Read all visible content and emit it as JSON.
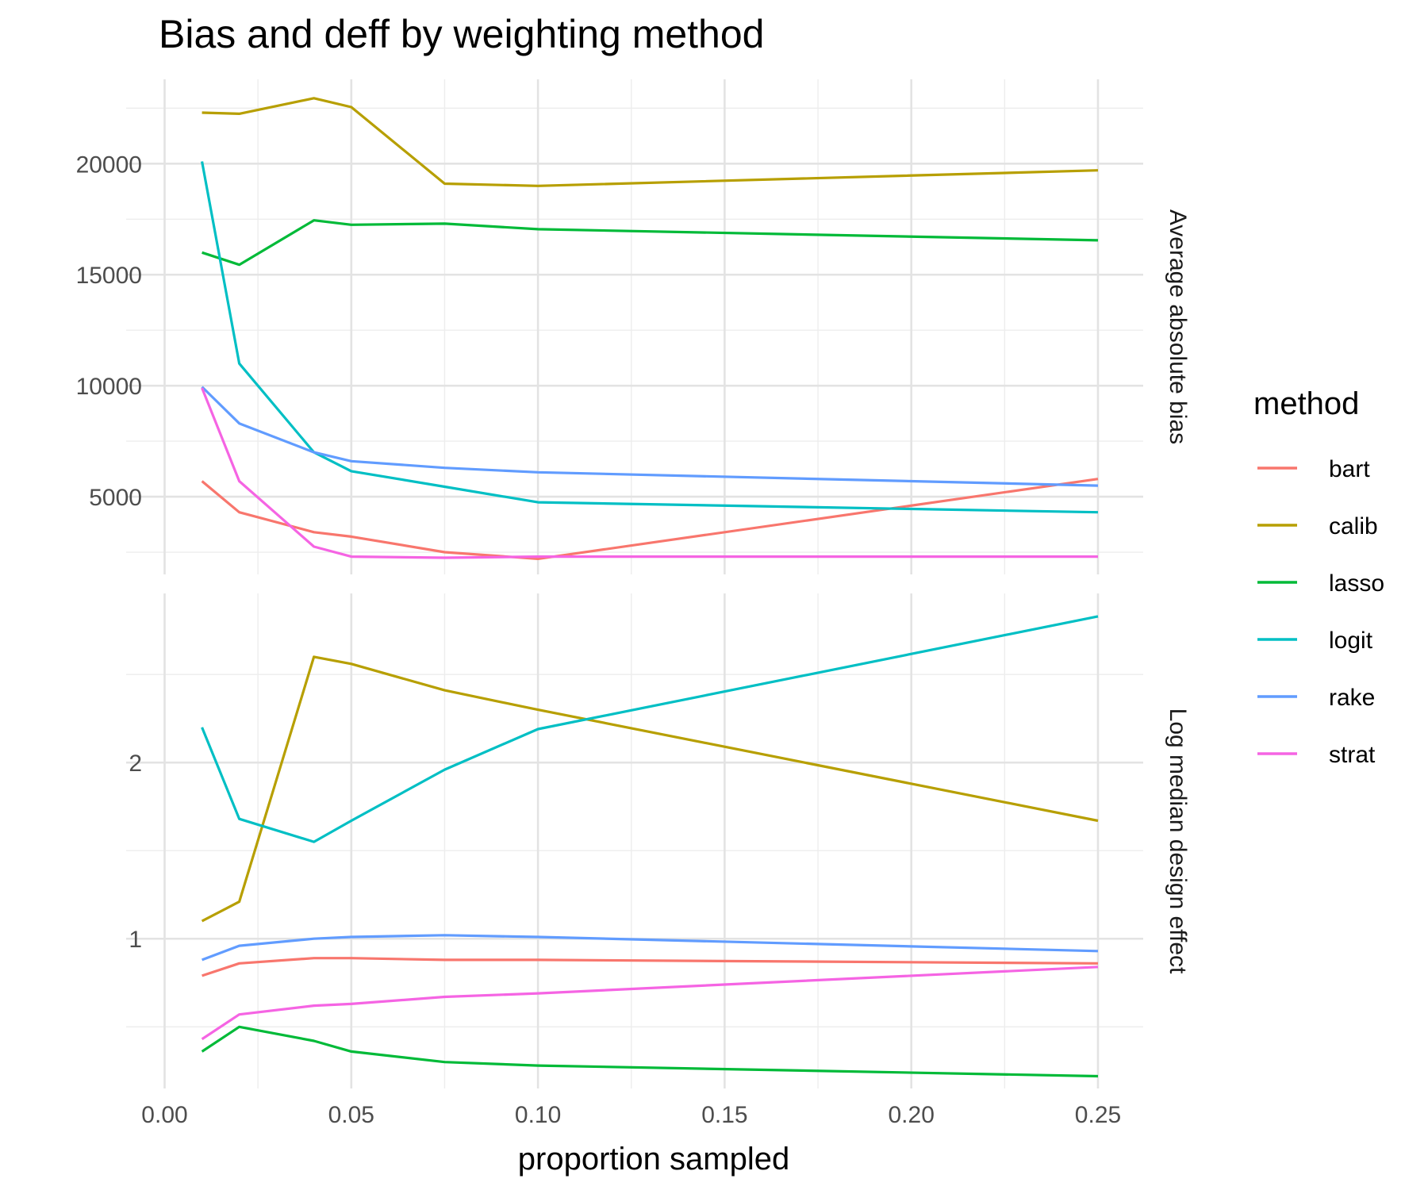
{
  "chart_data": {
    "type": "line",
    "title": "Bias and deff by weighting method",
    "xlabel": "proportion sampled",
    "x_ticks": [
      "0.00",
      "0.05",
      "0.10",
      "0.15",
      "0.20",
      "0.25"
    ],
    "xlim": [
      0,
      0.25
    ],
    "x": [
      0.01,
      0.02,
      0.04,
      0.05,
      0.075,
      0.1,
      0.25
    ],
    "legend": {
      "title": "method",
      "position": "right",
      "entries": [
        {
          "label": "bart",
          "color": "#F8766D"
        },
        {
          "label": "calib",
          "color": "#B79F00"
        },
        {
          "label": "lasso",
          "color": "#00BA38"
        },
        {
          "label": "logit",
          "color": "#00BFC4"
        },
        {
          "label": "rake",
          "color": "#619CFF"
        },
        {
          "label": "strat",
          "color": "#F564E3"
        }
      ]
    },
    "grid": true,
    "panels": [
      {
        "strip_label": "Average absolute bias",
        "ylim": [
          1500,
          23800
        ],
        "y_ticks": [
          "5000",
          "10000",
          "15000",
          "20000"
        ],
        "y_tick_values": [
          5000,
          10000,
          15000,
          20000
        ],
        "series": [
          {
            "name": "bart",
            "color": "#F8766D",
            "values": [
              5700,
              4300,
              3400,
              3200,
              2500,
              2200,
              5800
            ]
          },
          {
            "name": "calib",
            "color": "#B79F00",
            "values": [
              22300,
              22250,
              22950,
              22550,
              19100,
              19000,
              19700
            ]
          },
          {
            "name": "lasso",
            "color": "#00BA38",
            "values": [
              16000,
              15450,
              17450,
              17250,
              17300,
              17050,
              16550
            ]
          },
          {
            "name": "logit",
            "color": "#00BFC4",
            "values": [
              20100,
              11000,
              7000,
              6150,
              5450,
              4750,
              4300
            ]
          },
          {
            "name": "rake",
            "color": "#619CFF",
            "values": [
              9950,
              8300,
              7000,
              6600,
              6300,
              6100,
              5500
            ]
          },
          {
            "name": "strat",
            "color": "#F564E3",
            "values": [
              9900,
              5700,
              2750,
              2300,
              2250,
              2300,
              2300
            ]
          }
        ]
      },
      {
        "strip_label": "Log median design effect",
        "ylim": [
          0.15,
          2.96
        ],
        "y_ticks": [
          "1",
          "2"
        ],
        "y_tick_values": [
          1,
          2
        ],
        "series": [
          {
            "name": "bart",
            "color": "#F8766D",
            "values": [
              0.79,
              0.86,
              0.89,
              0.89,
              0.88,
              0.88,
              0.86
            ]
          },
          {
            "name": "calib",
            "color": "#B79F00",
            "values": [
              1.1,
              1.21,
              2.6,
              2.56,
              2.41,
              2.3,
              1.67
            ]
          },
          {
            "name": "lasso",
            "color": "#00BA38",
            "values": [
              0.36,
              0.5,
              0.42,
              0.36,
              0.3,
              0.28,
              0.22
            ]
          },
          {
            "name": "logit",
            "color": "#00BFC4",
            "values": [
              2.2,
              1.68,
              1.55,
              1.67,
              1.96,
              2.19,
              2.83
            ]
          },
          {
            "name": "rake",
            "color": "#619CFF",
            "values": [
              0.88,
              0.96,
              1.0,
              1.01,
              1.02,
              1.01,
              0.93
            ]
          },
          {
            "name": "strat",
            "color": "#F564E3",
            "values": [
              0.43,
              0.57,
              0.62,
              0.63,
              0.67,
              0.69,
              0.84
            ]
          }
        ]
      }
    ]
  }
}
